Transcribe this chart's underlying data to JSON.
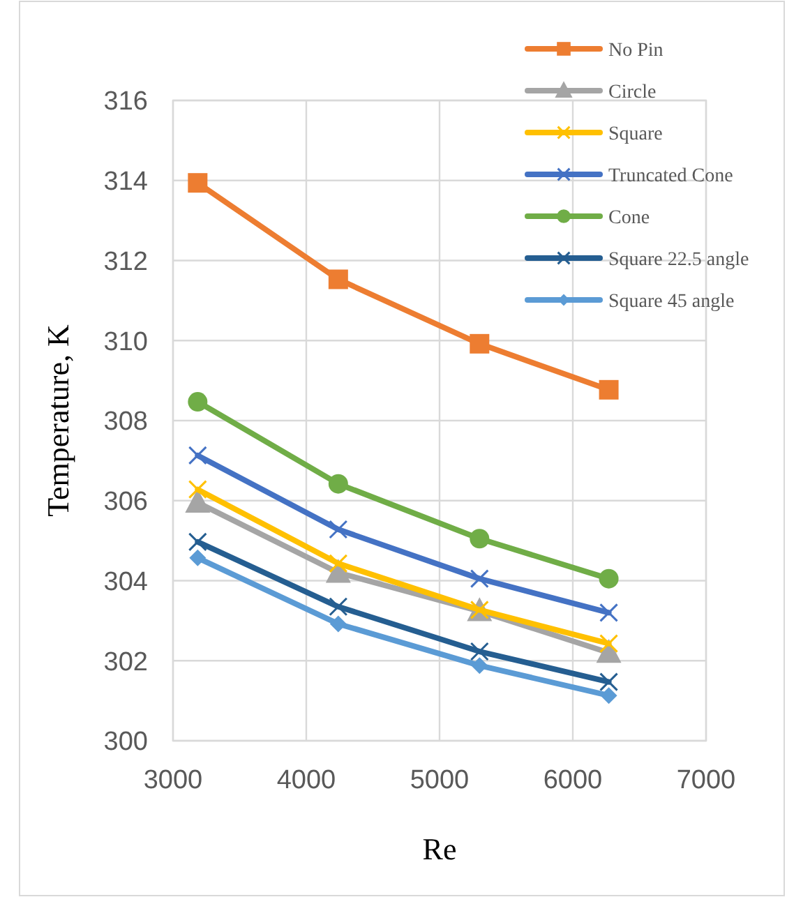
{
  "chart_data": {
    "type": "line",
    "xlabel": "Re",
    "ylabel": "Temperature, K",
    "x": [
      3185,
      4240,
      5300,
      6270
    ],
    "xlim": [
      3000,
      7000
    ],
    "xticks": [
      3000,
      4000,
      5000,
      6000,
      7000
    ],
    "ylim": [
      300,
      316
    ],
    "yticks": [
      300,
      302,
      304,
      306,
      308,
      310,
      312,
      314,
      316
    ],
    "grid": true,
    "legend": "top right",
    "series": [
      {
        "name": "No Pin",
        "color": "#ed7d31",
        "marker": "square",
        "values": [
          313.94,
          311.53,
          309.92,
          308.77
        ]
      },
      {
        "name": "Circle",
        "color": "#a5a5a5",
        "marker": "triangle",
        "values": [
          305.95,
          304.2,
          303.24,
          302.2
        ]
      },
      {
        "name": "Square",
        "color": "#ffc000",
        "marker": "cross",
        "values": [
          306.28,
          304.43,
          303.27,
          302.43
        ]
      },
      {
        "name": "Truncated Cone",
        "color": "#4472c4",
        "marker": "cross",
        "values": [
          307.13,
          305.28,
          304.05,
          303.2
        ]
      },
      {
        "name": "Cone",
        "color": "#70ad47",
        "marker": "circle",
        "values": [
          308.47,
          306.42,
          305.05,
          304.05
        ]
      },
      {
        "name": "Square 22.5 angle",
        "color": "#255e91",
        "marker": "cross",
        "values": [
          304.97,
          303.35,
          302.23,
          301.47
        ]
      },
      {
        "name": "Square 45 angle",
        "color": "#5b9bd5",
        "marker": "diamond",
        "values": [
          304.57,
          302.92,
          301.88,
          301.13
        ]
      }
    ]
  }
}
